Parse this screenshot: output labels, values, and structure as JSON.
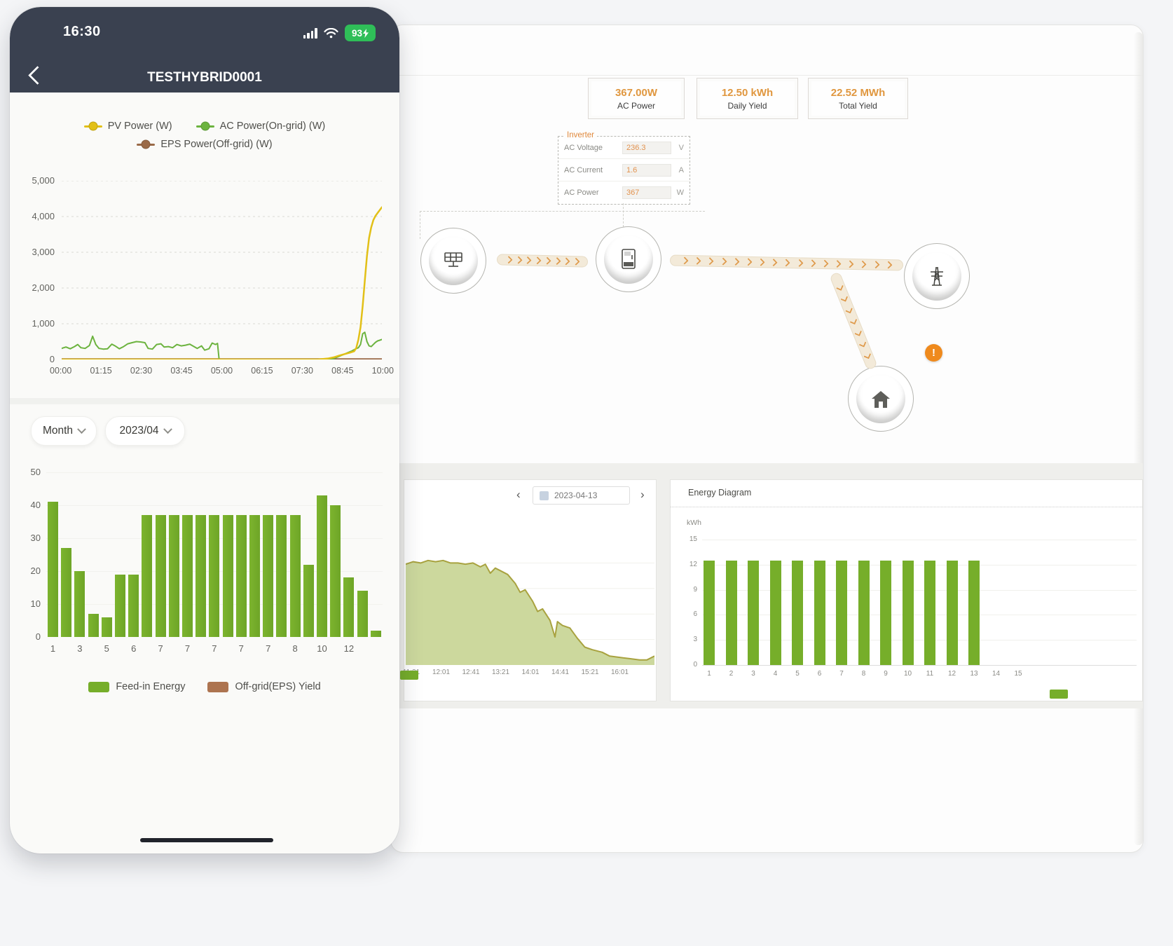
{
  "phone": {
    "status_bar": {
      "time": "16:30",
      "battery_percent": "93"
    },
    "nav_bar": {
      "title": "TESTHYBRID0001"
    },
    "filters": {
      "period": "Month",
      "month": "2023/04"
    }
  },
  "desktop": {
    "stats": [
      {
        "value": "367.00W",
        "label": "AC Power"
      },
      {
        "value": "12.50 kWh",
        "label": "Daily Yield"
      },
      {
        "value": "22.52 MWh",
        "label": "Total Yield"
      }
    ],
    "inverter_panel": {
      "title": "Inverter",
      "rows": [
        {
          "label": "AC Voltage",
          "value": "236.3",
          "unit": "V"
        },
        {
          "label": "AC Current",
          "value": "1.6",
          "unit": "A"
        },
        {
          "label": "AC Power",
          "value": "367",
          "unit": "W"
        }
      ]
    },
    "flow": {
      "warning": "!"
    },
    "day_chart_card": {
      "prev": "‹",
      "date": "2023-04-13",
      "next": "›"
    },
    "energy_card": {
      "title": "Energy Diagram",
      "unit": "kWh"
    }
  },
  "colors": {
    "accent_green": "#76ae2a",
    "pv_yellow": "#e2c017",
    "ac_green": "#6cb33f",
    "eps_brown": "#9a6a48",
    "value_orange": "#e2924e",
    "warning_orange": "#ef8a1d"
  },
  "chart_data": [
    {
      "id": "phone-power-line",
      "type": "line",
      "x_ticks": [
        "00:00",
        "01:15",
        "02:30",
        "03:45",
        "05:00",
        "06:15",
        "07:30",
        "08:45",
        "10:00"
      ],
      "x_range_minutes": [
        0,
        600
      ],
      "y_ticks": [
        "0",
        "1,000",
        "2,000",
        "3,000",
        "4,000",
        "5,000"
      ],
      "ylim": [
        0,
        5000
      ],
      "grid": "dashed-horizontal",
      "legend_position": "top",
      "series": [
        {
          "name": "PV Power (W)",
          "color": "#e2c017",
          "points": [
            [
              0,
              0
            ],
            [
              480,
              0
            ],
            [
              500,
              30
            ],
            [
              510,
              60
            ],
            [
              520,
              110
            ],
            [
              530,
              150
            ],
            [
              540,
              190
            ],
            [
              548,
              230
            ],
            [
              552,
              320
            ],
            [
              556,
              560
            ],
            [
              560,
              900
            ],
            [
              564,
              1500
            ],
            [
              568,
              2200
            ],
            [
              572,
              2900
            ],
            [
              576,
              3400
            ],
            [
              580,
              3700
            ],
            [
              584,
              3900
            ],
            [
              588,
              4020
            ],
            [
              592,
              4100
            ],
            [
              596,
              4180
            ],
            [
              600,
              4260
            ]
          ]
        },
        {
          "name": "AC Power(On-grid) (W)",
          "color": "#6cb33f",
          "points": [
            [
              0,
              310
            ],
            [
              8,
              350
            ],
            [
              16,
              300
            ],
            [
              24,
              360
            ],
            [
              30,
              420
            ],
            [
              36,
              330
            ],
            [
              44,
              310
            ],
            [
              52,
              390
            ],
            [
              58,
              650
            ],
            [
              64,
              420
            ],
            [
              70,
              310
            ],
            [
              78,
              290
            ],
            [
              86,
              300
            ],
            [
              94,
              430
            ],
            [
              100,
              380
            ],
            [
              108,
              300
            ],
            [
              116,
              360
            ],
            [
              124,
              440
            ],
            [
              132,
              470
            ],
            [
              140,
              500
            ],
            [
              148,
              490
            ],
            [
              156,
              470
            ],
            [
              162,
              310
            ],
            [
              170,
              290
            ],
            [
              178,
              420
            ],
            [
              186,
              440
            ],
            [
              192,
              350
            ],
            [
              200,
              360
            ],
            [
              208,
              330
            ],
            [
              216,
              420
            ],
            [
              224,
              380
            ],
            [
              232,
              400
            ],
            [
              240,
              430
            ],
            [
              248,
              360
            ],
            [
              254,
              310
            ],
            [
              262,
              380
            ],
            [
              268,
              260
            ],
            [
              276,
              300
            ],
            [
              282,
              460
            ],
            [
              288,
              420
            ],
            [
              292,
              450
            ],
            [
              295,
              0
            ],
            [
              505,
              0
            ],
            [
              512,
              40
            ],
            [
              520,
              90
            ],
            [
              528,
              140
            ],
            [
              536,
              190
            ],
            [
              544,
              240
            ],
            [
              550,
              290
            ],
            [
              556,
              330
            ],
            [
              560,
              420
            ],
            [
              564,
              720
            ],
            [
              568,
              760
            ],
            [
              572,
              500
            ],
            [
              576,
              380
            ],
            [
              580,
              360
            ],
            [
              584,
              420
            ],
            [
              588,
              480
            ],
            [
              592,
              520
            ],
            [
              596,
              540
            ],
            [
              600,
              560
            ]
          ]
        },
        {
          "name": "EPS Power(Off-grid) (W)",
          "color": "#9a6a48",
          "points": [
            [
              0,
              5
            ],
            [
              600,
              5
            ]
          ]
        }
      ]
    },
    {
      "id": "phone-monthly-bars",
      "type": "bar",
      "values": [
        41,
        27,
        20,
        7,
        6,
        19,
        19,
        37,
        37,
        37,
        37,
        37,
        37,
        37,
        37,
        37,
        37,
        37,
        37,
        22,
        43,
        40,
        18,
        14,
        2
      ],
      "x_ticks": [
        "1",
        "3",
        "5",
        "6",
        "7",
        "7",
        "7",
        "7",
        "7",
        "8",
        "10",
        "12"
      ],
      "y_ticks": [
        "0",
        "10",
        "20",
        "30",
        "40",
        "50"
      ],
      "ylim": [
        0,
        50
      ],
      "bar_color": "#76ae2a",
      "legend_position": "bottom",
      "legend": [
        {
          "label": "Feed-in Energy",
          "color": "#76ae2a"
        },
        {
          "label": "Off-grid(EPS) Yield",
          "color": "#ad7450"
        }
      ]
    },
    {
      "id": "day-power-area",
      "type": "area",
      "x_ticks": [
        "11:21",
        "12:01",
        "12:41",
        "13:21",
        "14:01",
        "14:41",
        "15:21",
        "16:01"
      ],
      "fill": "#ccd89d",
      "stroke": "#a8a23f",
      "points_norm": [
        [
          0,
          0.79
        ],
        [
          0.03,
          0.81
        ],
        [
          0.06,
          0.8
        ],
        [
          0.09,
          0.82
        ],
        [
          0.12,
          0.81
        ],
        [
          0.15,
          0.82
        ],
        [
          0.18,
          0.8
        ],
        [
          0.21,
          0.8
        ],
        [
          0.24,
          0.79
        ],
        [
          0.27,
          0.8
        ],
        [
          0.3,
          0.77
        ],
        [
          0.32,
          0.79
        ],
        [
          0.34,
          0.72
        ],
        [
          0.36,
          0.76
        ],
        [
          0.38,
          0.74
        ],
        [
          0.41,
          0.71
        ],
        [
          0.44,
          0.64
        ],
        [
          0.46,
          0.57
        ],
        [
          0.48,
          0.59
        ],
        [
          0.51,
          0.5
        ],
        [
          0.53,
          0.42
        ],
        [
          0.55,
          0.44
        ],
        [
          0.58,
          0.35
        ],
        [
          0.6,
          0.22
        ],
        [
          0.61,
          0.34
        ],
        [
          0.63,
          0.31
        ],
        [
          0.66,
          0.29
        ],
        [
          0.69,
          0.21
        ],
        [
          0.72,
          0.14
        ],
        [
          0.75,
          0.12
        ],
        [
          0.79,
          0.1
        ],
        [
          0.82,
          0.07
        ],
        [
          0.86,
          0.06
        ],
        [
          0.9,
          0.05
        ],
        [
          0.94,
          0.04
        ],
        [
          0.97,
          0.04
        ],
        [
          1,
          0.07
        ]
      ]
    },
    {
      "id": "energy-diagram-bars",
      "type": "bar",
      "title": "Energy Diagram",
      "ylabel": "kWh",
      "values": [
        12.5,
        12.5,
        12.5,
        12.5,
        12.5,
        12.5,
        12.5,
        12.5,
        12.5,
        12.5,
        12.5,
        12.5,
        12.5
      ],
      "x_ticks": [
        "1",
        "2",
        "3",
        "4",
        "5",
        "6",
        "7",
        "8",
        "9",
        "10",
        "11",
        "12",
        "13",
        "14",
        "15"
      ],
      "y_ticks": [
        "0",
        "3",
        "6",
        "9",
        "12",
        "15"
      ],
      "ylim": [
        0,
        15
      ],
      "bar_color": "#76ae2a"
    }
  ]
}
